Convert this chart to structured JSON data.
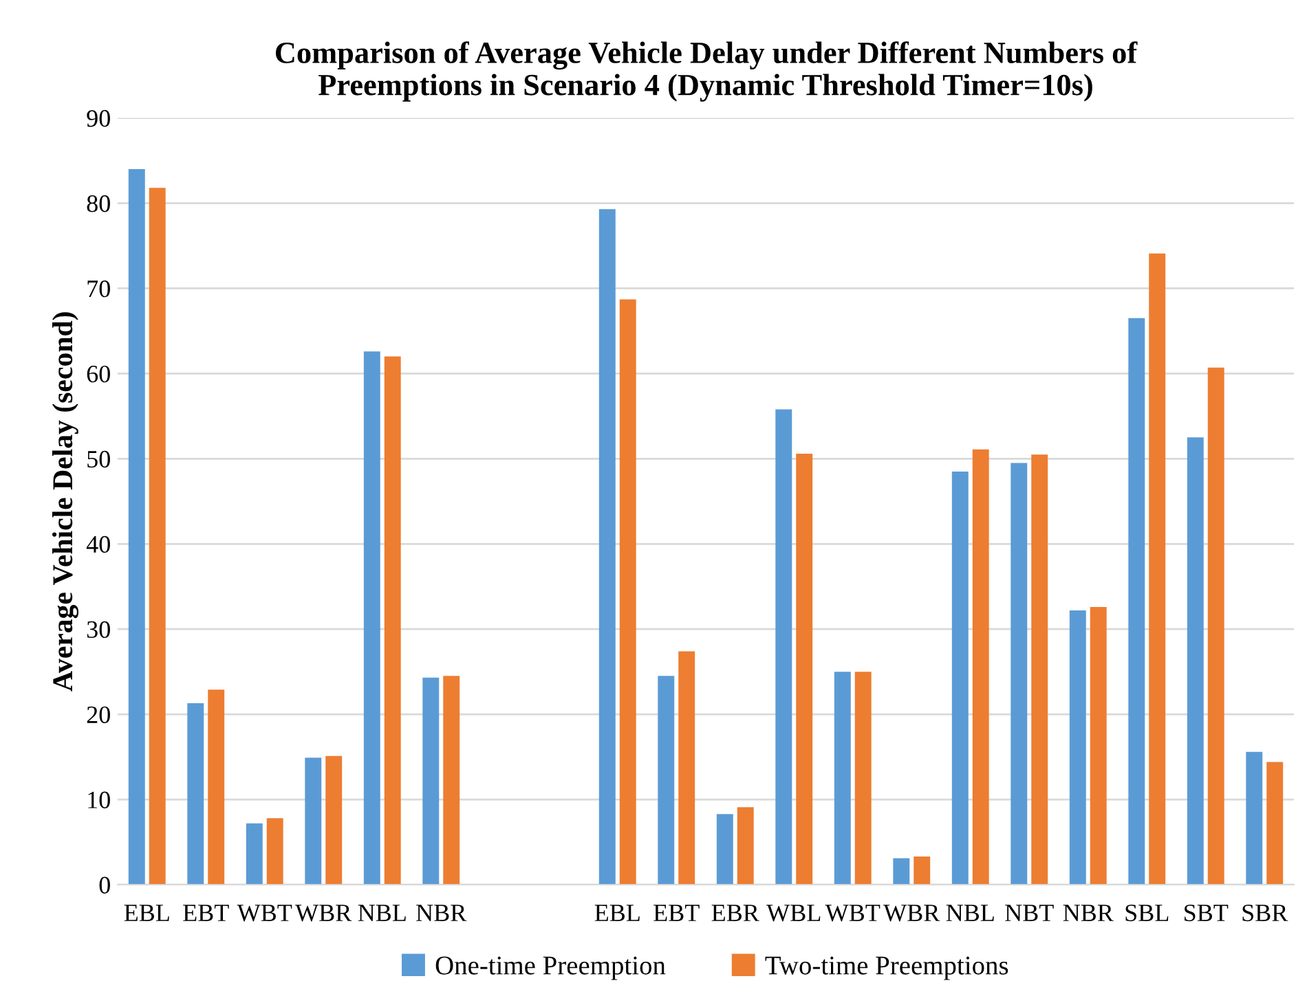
{
  "chart_data": {
    "type": "bar",
    "title": "Comparison of Average Vehicle Delay under Different Numbers of\nPreemptions in Scenario 4 (Dynamic Threshold Timer=10s)",
    "ylabel": "Average Vehicle Delay (second)",
    "categories": [
      "EBL",
      "EBT",
      "WBT",
      "WBR",
      "NBL",
      "NBR",
      null,
      null,
      "EBL",
      "EBT",
      "EBR",
      "WBL",
      "WBT",
      "WBR",
      "NBL",
      "NBT",
      "NBR",
      "SBL",
      "SBT",
      "SBR"
    ],
    "series": [
      {
        "name": "One-time Preemption",
        "color": "#5b9bd5",
        "values": [
          84.0,
          21.3,
          7.2,
          14.9,
          62.6,
          24.3,
          null,
          null,
          79.3,
          24.5,
          8.3,
          55.8,
          25.0,
          3.1,
          48.5,
          49.5,
          32.2,
          66.5,
          52.5,
          15.6
        ]
      },
      {
        "name": "Two-time Preemptions",
        "color": "#ed7d31",
        "values": [
          81.8,
          22.9,
          7.8,
          15.1,
          62.0,
          24.5,
          null,
          null,
          68.7,
          27.4,
          9.1,
          50.6,
          25.0,
          3.3,
          51.1,
          50.5,
          32.6,
          74.1,
          60.7,
          14.4
        ]
      }
    ],
    "ylim": [
      0,
      90
    ],
    "yticks": [
      0,
      10,
      20,
      30,
      40,
      50,
      60,
      70,
      80,
      90
    ],
    "grid": "y",
    "legend": "bottom"
  }
}
